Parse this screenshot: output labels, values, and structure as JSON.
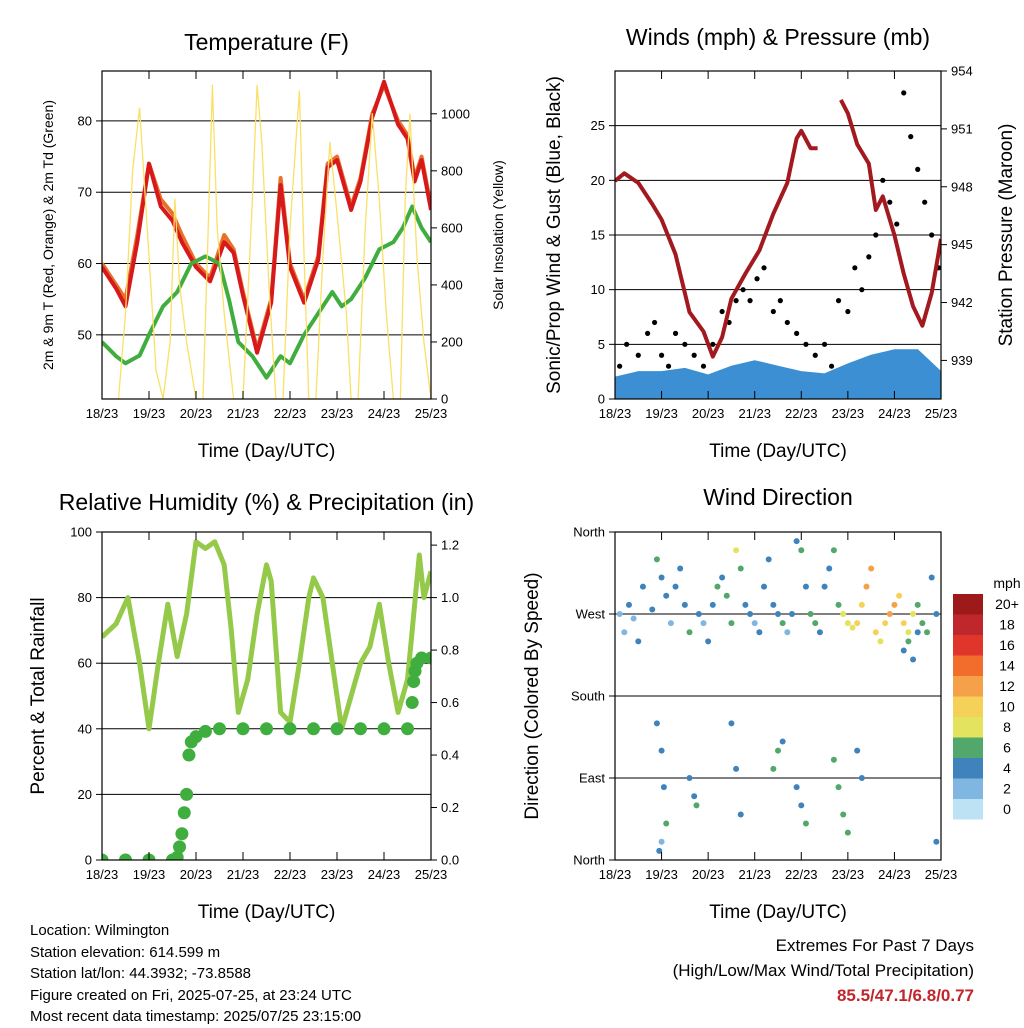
{
  "chart_data": [
    {
      "type": "line",
      "title": "Temperature (F)",
      "xlabel": "Time (Day/UTC)",
      "ylabel": "2m & 9m T (Red, Orange) & 2m Td (Green)",
      "y2label": "Solar Insolation (Yellow)",
      "x_ticks": [
        "18/23",
        "19/23",
        "20/23",
        "21/23",
        "22/23",
        "23/23",
        "24/23",
        "25/23"
      ],
      "xlim": [
        0,
        7
      ],
      "ylim": [
        41,
        87
      ],
      "y_ticks": [
        50,
        60,
        70,
        80
      ],
      "y2lim": [
        0,
        1150
      ],
      "y2_ticks": [
        0,
        200,
        400,
        600,
        800,
        1000
      ],
      "grid": true,
      "series": [
        {
          "axis": "left",
          "color": "#e8702a",
          "x": [
            0,
            0.3,
            0.5,
            0.75,
            1.0,
            1.25,
            1.5,
            1.7,
            2.0,
            2.3,
            2.6,
            2.8,
            3.0,
            3.3,
            3.6,
            3.8,
            4.0,
            4.3,
            4.6,
            4.8,
            5.0,
            5.3,
            5.5,
            5.75,
            6.0,
            6.3,
            6.5,
            6.65,
            6.8,
            7.0
          ],
          "values": [
            60,
            57,
            55,
            64,
            74,
            69,
            67,
            64,
            60,
            58,
            64,
            62,
            56,
            48,
            55,
            72,
            60,
            55,
            61,
            74,
            75,
            68,
            72,
            81,
            85,
            80,
            78,
            72,
            75,
            68
          ]
        },
        {
          "axis": "left",
          "color": "#d7191c",
          "x": [
            0,
            0.3,
            0.5,
            0.75,
            1.0,
            1.25,
            1.5,
            1.7,
            2.0,
            2.3,
            2.6,
            2.8,
            3.0,
            3.3,
            3.6,
            3.8,
            4.0,
            4.3,
            4.6,
            4.8,
            5.0,
            5.3,
            5.5,
            5.75,
            6.0,
            6.3,
            6.5,
            6.65,
            6.8,
            7.0
          ],
          "values": [
            59.5,
            56.5,
            54,
            63,
            74,
            68,
            66,
            63,
            59.5,
            57.5,
            63,
            61.5,
            55.5,
            47.5,
            54.5,
            71,
            59.5,
            54.5,
            60.5,
            73.5,
            74.5,
            67.5,
            71.5,
            80.5,
            85.5,
            79.5,
            77.5,
            71.5,
            74.5,
            67.5
          ]
        },
        {
          "axis": "left",
          "color": "#3fae3f",
          "x": [
            0,
            0.3,
            0.5,
            0.8,
            1.0,
            1.3,
            1.6,
            1.9,
            2.2,
            2.5,
            2.7,
            2.9,
            3.2,
            3.5,
            3.8,
            4.0,
            4.3,
            4.6,
            4.9,
            5.1,
            5.3,
            5.6,
            5.9,
            6.2,
            6.4,
            6.6,
            6.8,
            7.0
          ],
          "values": [
            49,
            47,
            46,
            47.1,
            50,
            54,
            56,
            60,
            61,
            60,
            55,
            49,
            47,
            44,
            47,
            46,
            50,
            53,
            56,
            54,
            55,
            58,
            62,
            63,
            65,
            68,
            65,
            63
          ]
        },
        {
          "axis": "right",
          "color": "#fbe066",
          "x": [
            0,
            0.35,
            0.5,
            0.65,
            0.8,
            1.0,
            1.15,
            1.3,
            1.45,
            1.55,
            1.65,
            1.8,
            2.0,
            2.15,
            2.25,
            2.35,
            2.45,
            2.6,
            2.8,
            3.0,
            3.2,
            3.3,
            3.4,
            3.55,
            3.7,
            3.85,
            4.0,
            4.2,
            4.3,
            4.4,
            4.55,
            4.7,
            4.85,
            5.0,
            5.2,
            5.3,
            5.45,
            5.6,
            5.75,
            5.9,
            6.05,
            6.2,
            6.35,
            6.45,
            6.55,
            6.7,
            6.85,
            7.0
          ],
          "values": [
            0,
            0,
            300,
            800,
            1020,
            500,
            100,
            0,
            200,
            700,
            400,
            200,
            0,
            0,
            550,
            1100,
            600,
            300,
            0,
            0,
            700,
            1100,
            900,
            400,
            0,
            0,
            600,
            1080,
            500,
            0,
            0,
            500,
            900,
            650,
            300,
            0,
            0,
            600,
            1000,
            700,
            300,
            0,
            0,
            700,
            1000,
            500,
            200,
            0
          ]
        }
      ]
    },
    {
      "type": "line",
      "title": "Winds (mph) & Pressure (mb)",
      "xlabel": "Time (Day/UTC)",
      "ylabel": "Sonic/Prop Wind & Gust (Blue, Black)",
      "y2label": "Station Pressure (Maroon)",
      "x_ticks": [
        "18/23",
        "19/23",
        "20/23",
        "21/23",
        "22/23",
        "23/23",
        "24/23",
        "25/23"
      ],
      "xlim": [
        0,
        7
      ],
      "ylim": [
        0,
        30
      ],
      "y_ticks": [
        0,
        5,
        10,
        15,
        20,
        25
      ],
      "y2lim": [
        937,
        954
      ],
      "y2_ticks": [
        939,
        942,
        945,
        948,
        951,
        954
      ],
      "grid": true,
      "series": [
        {
          "axis": "right",
          "color": "#a2191f",
          "x": [
            0,
            0.2,
            0.5,
            0.8,
            1.0,
            1.3,
            1.6,
            1.9,
            2.1,
            2.3,
            2.5,
            2.8,
            3.1,
            3.4,
            3.7,
            3.9,
            4.0,
            4.2,
            4.35
          ],
          "values": [
            948.3,
            948.7,
            948.2,
            947.1,
            946.3,
            944.5,
            941.5,
            940.5,
            939.2,
            940.2,
            942.2,
            943.5,
            944.7,
            946.6,
            948.2,
            950.5,
            950.9,
            950.0,
            950.0
          ]
        },
        {
          "axis": "right",
          "color": "#a2191f",
          "x": [
            4.85,
            5.0,
            5.2,
            5.45,
            5.6,
            5.75,
            6.0,
            6.2,
            6.4,
            6.6,
            6.8,
            7.0
          ],
          "values": [
            952.5,
            951.8,
            950.2,
            949.2,
            946.8,
            947.5,
            945.5,
            943.5,
            941.8,
            940.8,
            942.5,
            945.3
          ]
        }
      ],
      "gust_scatter": {
        "color": "#000000",
        "x": [
          0.1,
          0.25,
          0.5,
          0.7,
          0.85,
          1.0,
          1.15,
          1.3,
          1.5,
          1.7,
          1.9,
          2.1,
          2.3,
          2.45,
          2.6,
          2.75,
          2.9,
          3.05,
          3.2,
          3.4,
          3.55,
          3.7,
          3.9,
          4.1,
          4.3,
          4.5,
          4.65,
          4.8,
          5.0,
          5.15,
          5.3,
          5.45,
          5.6,
          5.75,
          5.9,
          6.05,
          6.2,
          6.35,
          6.5,
          6.65,
          6.8,
          6.95
        ],
        "values": [
          3,
          5,
          4,
          6,
          7,
          4,
          3,
          6,
          5,
          4,
          3,
          5,
          8,
          7,
          9,
          10,
          9,
          11,
          12,
          8,
          9,
          7,
          6,
          5,
          4,
          5,
          3,
          9,
          8,
          12,
          10,
          13,
          15,
          20,
          18,
          16,
          28,
          24,
          21,
          18,
          15,
          12
        ]
      },
      "wind_band": {
        "color": "#3b8fd2",
        "x": [
          0,
          0.5,
          1.0,
          1.5,
          2.0,
          2.5,
          3.0,
          3.5,
          4.0,
          4.5,
          5.0,
          5.5,
          6.0,
          6.5,
          7.0
        ],
        "values": [
          2,
          2.5,
          2.5,
          2.8,
          2.2,
          3,
          3.5,
          3,
          2.5,
          2.3,
          3.2,
          4,
          4.5,
          4.5,
          2.5
        ]
      }
    },
    {
      "type": "line",
      "title": "Relative Humidity (%) & Precipitation (in)",
      "xlabel": "Time (Day/UTC)",
      "ylabel": "Percent & Total Rainfall",
      "x_ticks": [
        "18/23",
        "19/23",
        "20/23",
        "21/23",
        "22/23",
        "23/23",
        "24/23",
        "25/23"
      ],
      "xlim": [
        0,
        7
      ],
      "ylim": [
        0,
        100
      ],
      "y_ticks": [
        0,
        20,
        40,
        60,
        80,
        100
      ],
      "y2lim": [
        0,
        1.25
      ],
      "y2_ticks": [
        0.0,
        0.2,
        0.4,
        0.6,
        0.8,
        1.0,
        1.2
      ],
      "grid": true,
      "series": [
        {
          "axis": "left",
          "color": "#95c94a",
          "x": [
            0,
            0.3,
            0.55,
            0.8,
            1.0,
            1.2,
            1.4,
            1.6,
            1.8,
            2.0,
            2.2,
            2.4,
            2.6,
            2.75,
            2.9,
            3.1,
            3.3,
            3.5,
            3.6,
            3.8,
            4.0,
            4.2,
            4.4,
            4.5,
            4.7,
            4.9,
            5.1,
            5.3,
            5.5,
            5.7,
            5.9,
            6.1,
            6.3,
            6.5,
            6.6,
            6.75,
            6.85,
            7.0
          ],
          "values": [
            68,
            72,
            80,
            60,
            40,
            60,
            78,
            62,
            75,
            97,
            95,
            97,
            90,
            70,
            45,
            55,
            75,
            90,
            85,
            45,
            42,
            60,
            80,
            86,
            80,
            60,
            40,
            50,
            60,
            65,
            78,
            60,
            45,
            55,
            70,
            93,
            80,
            88
          ]
        },
        {
          "axis": "right",
          "color": "#3fae3f",
          "marker": "circle",
          "x": [
            0,
            0.5,
            1.0,
            1.5,
            1.6,
            1.65,
            1.7,
            1.75,
            1.8,
            1.85,
            1.9,
            2.0,
            2.2,
            2.5,
            3.0,
            3.5,
            4.0,
            4.5,
            5.0,
            5.5,
            6.0,
            6.5,
            6.6,
            6.63,
            6.66,
            6.7,
            6.8,
            7.0
          ],
          "values": [
            0,
            0,
            0,
            0,
            0.01,
            0.05,
            0.1,
            0.18,
            0.25,
            0.4,
            0.45,
            0.47,
            0.49,
            0.5,
            0.5,
            0.5,
            0.5,
            0.5,
            0.5,
            0.5,
            0.5,
            0.5,
            0.6,
            0.68,
            0.72,
            0.75,
            0.77,
            0.77
          ]
        }
      ]
    },
    {
      "type": "scatter",
      "title": "Wind Direction",
      "xlabel": "Time (Day/UTC)",
      "ylabel": "Direction (Colored By Speed)",
      "x_ticks": [
        "18/23",
        "19/23",
        "20/23",
        "21/23",
        "22/23",
        "23/23",
        "24/23",
        "25/23"
      ],
      "xlim": [
        0,
        7
      ],
      "ylim": [
        0,
        360
      ],
      "y_tick_values": [
        0,
        90,
        180,
        270,
        360
      ],
      "y_tick_labels": [
        "North",
        "East",
        "South",
        "West",
        "North"
      ],
      "grid": true,
      "legend": {
        "title": "mph",
        "position": "right",
        "labels": [
          "20+",
          "18",
          "16",
          "14",
          "12",
          "10",
          "8",
          "6",
          "4",
          "2",
          "0"
        ],
        "colors": [
          "#9e1a1a",
          "#c0272d",
          "#e0352b",
          "#f26c2b",
          "#f5a14a",
          "#f6d15a",
          "#e3e35f",
          "#52a86a",
          "#3f83bd",
          "#7fb6e2",
          "#bde2f4"
        ]
      },
      "points": {
        "x": [
          0.1,
          0.2,
          0.3,
          0.4,
          0.5,
          0.6,
          0.8,
          0.9,
          1.0,
          1.1,
          1.2,
          1.3,
          1.4,
          1.5,
          1.6,
          1.8,
          1.9,
          2.0,
          2.1,
          2.2,
          2.3,
          2.4,
          2.5,
          2.6,
          2.7,
          2.8,
          2.9,
          3.0,
          3.1,
          3.2,
          3.3,
          3.4,
          3.5,
          3.6,
          3.7,
          3.8,
          3.9,
          4.0,
          4.1,
          4.2,
          4.3,
          4.4,
          4.5,
          4.6,
          4.7,
          4.8,
          4.9,
          5.0,
          5.1,
          5.2,
          5.3,
          5.4,
          5.5,
          5.6,
          5.7,
          5.8,
          5.9,
          6.0,
          6.1,
          6.2,
          6.3,
          6.4,
          6.5,
          6.6,
          6.7,
          6.8,
          6.9,
          0.9,
          1.0,
          1.05,
          1.1,
          1.6,
          1.7,
          1.75,
          3.4,
          3.5,
          3.6,
          3.9,
          4.0,
          4.1,
          4.7,
          4.8,
          4.9,
          5.0,
          5.2,
          5.3,
          6.9,
          2.5,
          2.6,
          2.7,
          0.95,
          1.0,
          6.2,
          6.3,
          6.4,
          6.5
        ],
        "values": [
          270,
          250,
          280,
          265,
          240,
          300,
          275,
          330,
          310,
          290,
          260,
          300,
          320,
          280,
          250,
          270,
          260,
          240,
          280,
          300,
          310,
          290,
          260,
          340,
          320,
          280,
          270,
          260,
          250,
          300,
          330,
          280,
          270,
          260,
          250,
          270,
          350,
          340,
          300,
          270,
          260,
          250,
          300,
          320,
          340,
          280,
          270,
          260,
          255,
          260,
          280,
          300,
          320,
          250,
          240,
          260,
          270,
          280,
          290,
          260,
          250,
          270,
          280,
          260,
          250,
          310,
          270,
          150,
          120,
          80,
          40,
          90,
          70,
          60,
          100,
          120,
          130,
          80,
          60,
          40,
          110,
          80,
          50,
          30,
          120,
          90,
          20,
          150,
          100,
          50,
          10,
          20,
          230,
          240,
          220,
          250
        ],
        "speed": [
          1,
          1,
          2,
          1,
          2,
          2,
          2,
          3,
          2,
          2,
          1,
          2,
          2,
          2,
          3,
          2,
          1,
          2,
          2,
          3,
          2,
          3,
          3,
          4,
          3,
          2,
          2,
          1,
          2,
          2,
          2,
          2,
          2,
          3,
          1,
          2,
          2,
          3,
          2,
          3,
          3,
          2,
          2,
          2,
          3,
          3,
          4,
          4,
          4,
          5,
          5,
          6,
          6,
          5,
          4,
          5,
          6,
          6,
          5,
          5,
          4,
          4,
          3,
          3,
          3,
          2,
          2,
          2,
          2,
          2,
          3,
          2,
          2,
          3,
          3,
          3,
          2,
          2,
          2,
          3,
          3,
          3,
          3,
          3,
          2,
          2,
          2,
          2,
          2,
          2,
          2,
          1,
          2,
          3,
          2,
          2
        ]
      }
    }
  ],
  "info": {
    "location": "Location: Wilmington",
    "elevation": "Station elevation: 614.599 m",
    "latlon": "Station lat/lon: 44.3932; -73.8588",
    "created": "Figure created on Fri, 2025-07-25, at 23:24 UTC",
    "timestamp": "Most recent data timestamp: 2025/07/25 23:15:00"
  },
  "extremes": {
    "heading": "Extremes For Past 7 Days",
    "subheading": "(High/Low/Max Wind/Total Precipitation)",
    "values": "85.5/47.1/6.8/0.77"
  }
}
